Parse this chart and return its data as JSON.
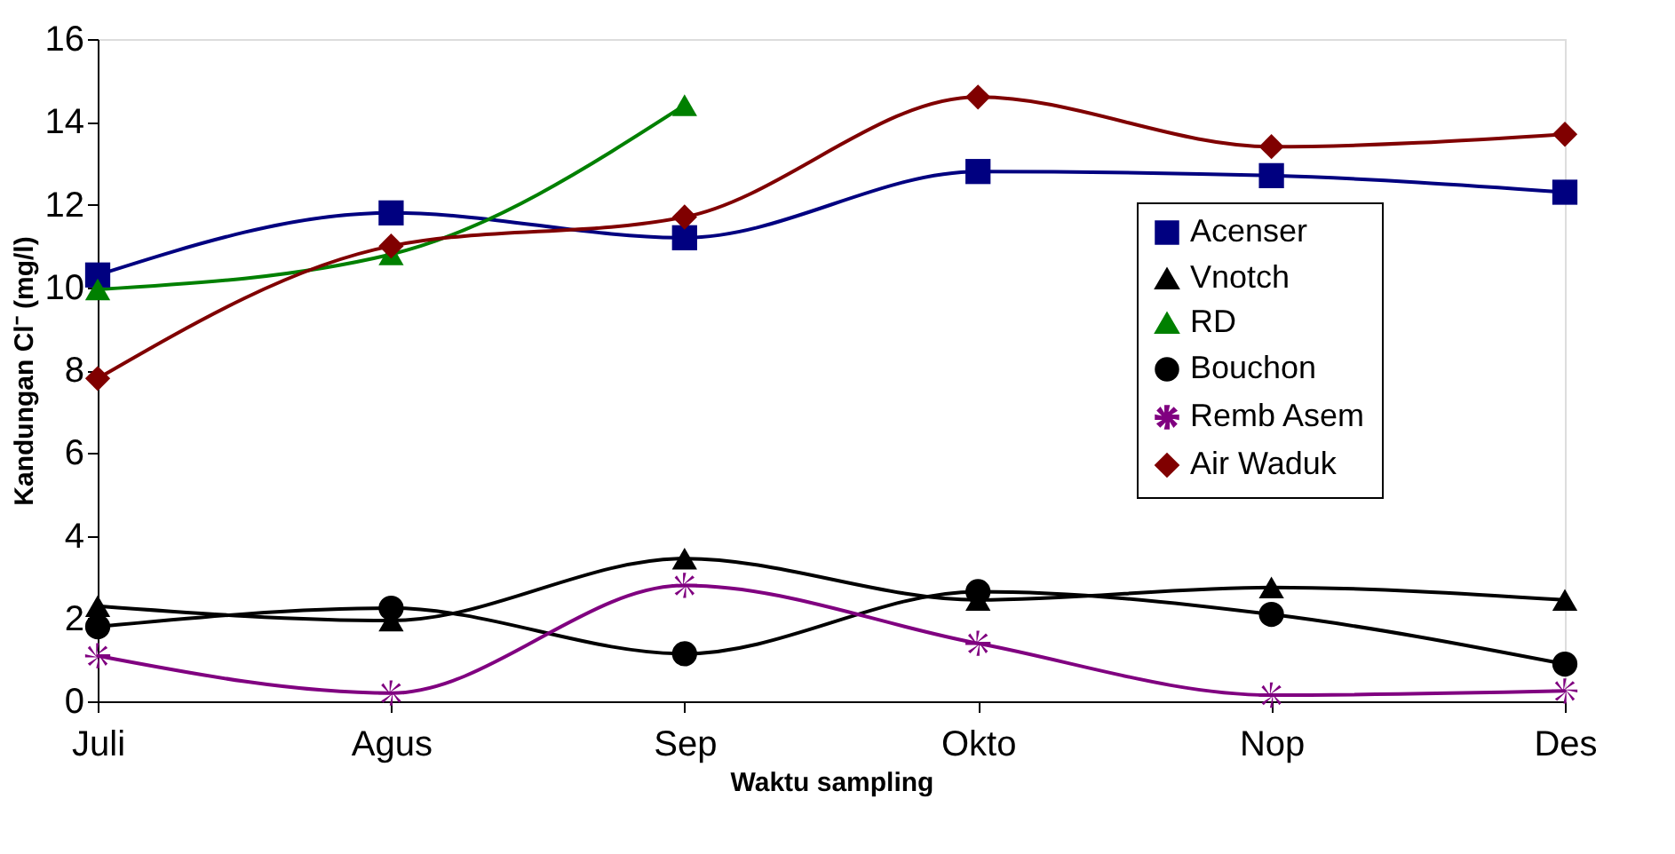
{
  "chart_data": {
    "type": "line",
    "xlabel": "Waktu sampling",
    "ylabel": "Kandungan Cl⁻ (mg/l)",
    "categories": [
      "Juli",
      "Agus",
      "Sep",
      "Okto",
      "Nop",
      "Des"
    ],
    "ylim": [
      0,
      16
    ],
    "yticks": [
      0,
      2,
      4,
      6,
      8,
      10,
      12,
      14,
      16
    ],
    "grid": false,
    "legend": "right",
    "line_style": "solid",
    "series": [
      {
        "name": "Acenser",
        "color": "#000080",
        "marker": "square",
        "values": [
          10.3,
          11.8,
          11.2,
          12.8,
          12.7,
          12.3
        ]
      },
      {
        "name": "Vnotch",
        "color": "#000000",
        "marker": "triangle",
        "values": [
          2.3,
          1.95,
          3.45,
          2.45,
          2.75,
          2.45
        ]
      },
      {
        "name": "RD",
        "color": "#008000",
        "marker": "triangle",
        "values": [
          9.95,
          10.8,
          14.4,
          null,
          null,
          null
        ]
      },
      {
        "name": "Bouchon",
        "color": "#000000",
        "marker": "circle",
        "values": [
          1.8,
          2.25,
          1.15,
          2.65,
          2.1,
          0.9
        ]
      },
      {
        "name": "Remb Asem",
        "color": "#800080",
        "marker": "star",
        "values": [
          1.1,
          0.2,
          2.8,
          1.4,
          0.15,
          0.25
        ]
      },
      {
        "name": "Air Waduk",
        "color": "#800000",
        "marker": "diamond",
        "values": [
          7.8,
          11.0,
          11.7,
          14.6,
          13.4,
          13.7
        ]
      }
    ]
  }
}
